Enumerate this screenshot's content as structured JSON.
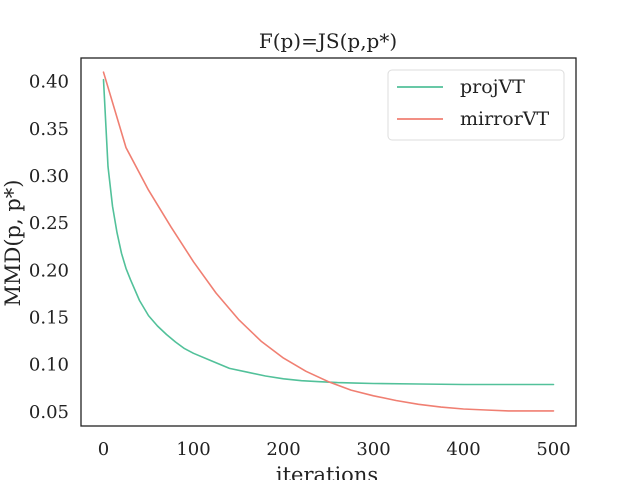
{
  "chart_data": {
    "type": "line",
    "title": "F(p)=JS(p,p*)",
    "xlabel": "iterations",
    "ylabel": "MMD(p, p*)",
    "xlim": [
      -25,
      525
    ],
    "ylim": [
      0.035,
      0.425
    ],
    "xticks": [
      0,
      100,
      200,
      300,
      400,
      500
    ],
    "xtick_labels": [
      "0",
      "100",
      "200",
      "300",
      "400",
      "500"
    ],
    "yticks": [
      0.05,
      0.1,
      0.15,
      0.2,
      0.25,
      0.3,
      0.35,
      0.4
    ],
    "ytick_labels": [
      "0.05",
      "0.10",
      "0.15",
      "0.20",
      "0.25",
      "0.30",
      "0.35",
      "0.40"
    ],
    "grid": false,
    "legend_position": "top-right",
    "series": [
      {
        "name": "projVT",
        "color": "#52c19a",
        "x": [
          0,
          5,
          10,
          15,
          20,
          25,
          30,
          40,
          50,
          60,
          70,
          80,
          90,
          100,
          120,
          140,
          160,
          180,
          200,
          220,
          240,
          260,
          280,
          300,
          350,
          400,
          450,
          500
        ],
        "y": [
          0.402,
          0.31,
          0.268,
          0.24,
          0.218,
          0.202,
          0.19,
          0.168,
          0.152,
          0.141,
          0.132,
          0.124,
          0.117,
          0.112,
          0.104,
          0.096,
          0.092,
          0.088,
          0.085,
          0.083,
          0.082,
          0.081,
          0.0805,
          0.08,
          0.0795,
          0.079,
          0.079,
          0.079
        ]
      },
      {
        "name": "mirrorVT",
        "color": "#f07f72",
        "x": [
          0,
          25,
          50,
          75,
          100,
          125,
          150,
          175,
          200,
          225,
          250,
          275,
          300,
          325,
          350,
          375,
          400,
          425,
          450,
          475,
          500
        ],
        "y": [
          0.41,
          0.33,
          0.285,
          0.246,
          0.209,
          0.176,
          0.148,
          0.125,
          0.107,
          0.093,
          0.082,
          0.073,
          0.067,
          0.062,
          0.058,
          0.055,
          0.053,
          0.052,
          0.051,
          0.051,
          0.051
        ]
      }
    ]
  }
}
